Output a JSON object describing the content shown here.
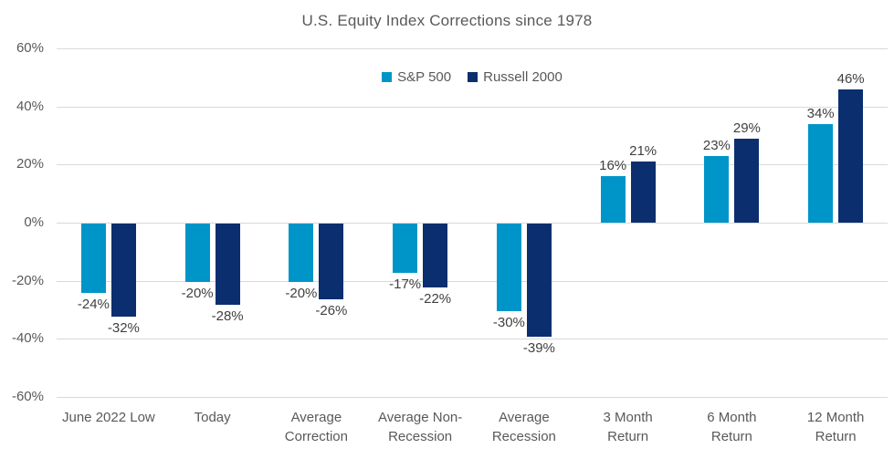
{
  "chart_data": {
    "type": "bar",
    "title": "U.S. Equity Index Corrections since 1978",
    "categories": [
      {
        "label": "June 2022 Low",
        "lines": [
          "June 2022 Low"
        ]
      },
      {
        "label": "Today",
        "lines": [
          "Today"
        ]
      },
      {
        "label": "Average Correction",
        "lines": [
          "Average",
          "Correction"
        ]
      },
      {
        "label": "Average Non-Recession",
        "lines": [
          "Average Non-",
          "Recession"
        ]
      },
      {
        "label": "Average Recession",
        "lines": [
          "Average",
          "Recession"
        ]
      },
      {
        "label": "3 Month Return",
        "lines": [
          "3 Month",
          "Return"
        ]
      },
      {
        "label": "6 Month Return",
        "lines": [
          "6 Month",
          "Return"
        ]
      },
      {
        "label": "12 Month Return",
        "lines": [
          "12 Month",
          "Return"
        ]
      }
    ],
    "series": [
      {
        "name": "S&P 500",
        "color": "#0095C8",
        "values": [
          -24,
          -20,
          -20,
          -17,
          -30,
          16,
          23,
          34
        ]
      },
      {
        "name": "Russell 2000",
        "color": "#0B2E6F",
        "values": [
          -32,
          -28,
          -26,
          -22,
          -39,
          21,
          29,
          46
        ]
      }
    ],
    "data_labels": [
      [
        "-24%",
        "-20%",
        "-20%",
        "-17%",
        "-30%",
        "16%",
        "23%",
        "34%"
      ],
      [
        "-32%",
        "-28%",
        "-26%",
        "-22%",
        "-39%",
        "21%",
        "29%",
        "46%"
      ]
    ],
    "xlabel": "",
    "ylabel": "",
    "ylim": [
      -60,
      60
    ],
    "ytick_step": 20,
    "ytick_labels": [
      "60%",
      "40%",
      "20%",
      "0%",
      "-20%",
      "-40%",
      "-60%"
    ],
    "grid": "horizontal",
    "legend_position": "top-center",
    "styles": {
      "title_color": "#595959",
      "axis_label_color": "#595959",
      "data_label_color": "#404040",
      "gridline_color": "#D9D9D9",
      "background": "#FFFFFF"
    }
  }
}
